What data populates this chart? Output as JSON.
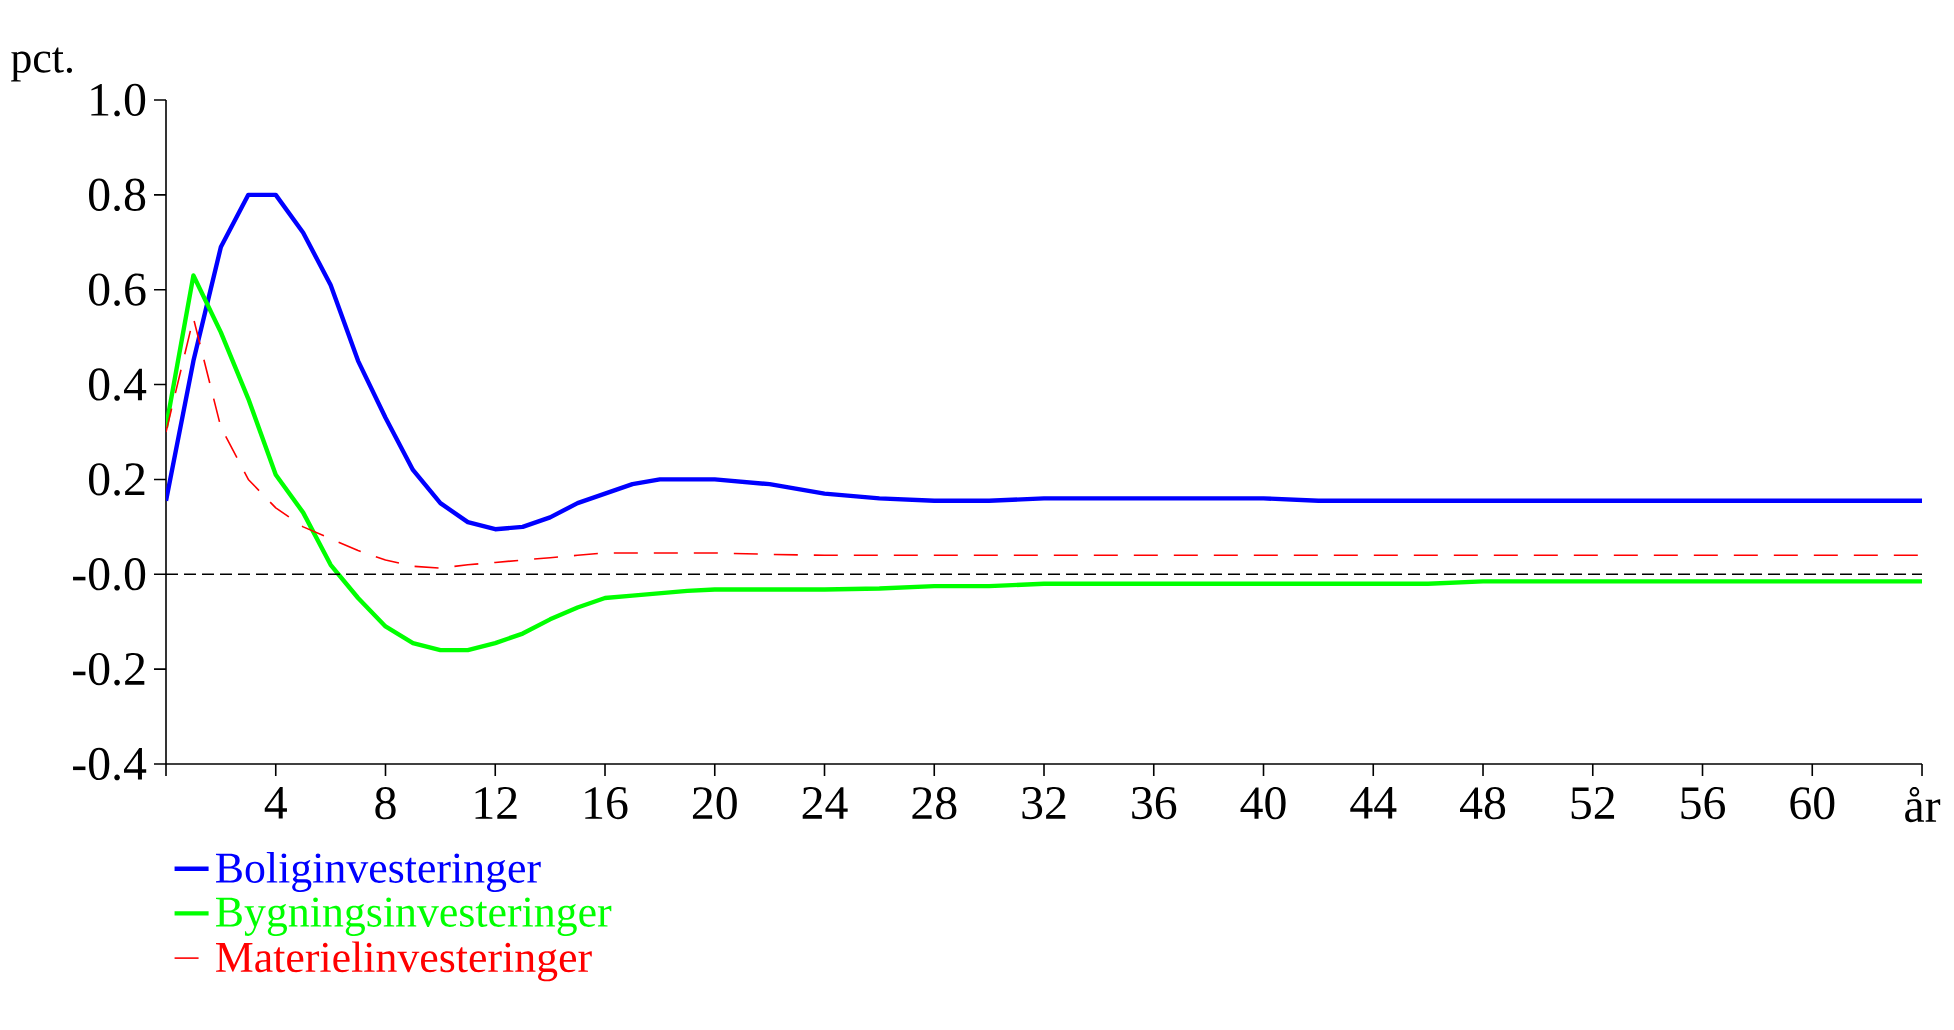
{
  "chart_data": {
    "type": "line",
    "ylabel": "pct.",
    "x": [
      0,
      1,
      2,
      3,
      4,
      5,
      6,
      7,
      8,
      9,
      10,
      11,
      12,
      13,
      14,
      15,
      16,
      17,
      18,
      19,
      20,
      22,
      24,
      26,
      28,
      30,
      32,
      34,
      36,
      38,
      40,
      42,
      44,
      46,
      48,
      50,
      52,
      54,
      56,
      58,
      60,
      62,
      64
    ],
    "series": [
      {
        "name": "Boliginvesteringer",
        "color": "#0000ff",
        "line_style": "solid",
        "values": [
          0.155,
          0.45,
          0.69,
          0.8,
          0.8,
          0.72,
          0.61,
          0.45,
          0.33,
          0.22,
          0.15,
          0.11,
          0.095,
          0.1,
          0.12,
          0.15,
          0.17,
          0.19,
          0.2,
          0.2,
          0.2,
          0.19,
          0.17,
          0.16,
          0.155,
          0.155,
          0.16,
          0.16,
          0.16,
          0.16,
          0.16,
          0.155,
          0.155,
          0.155,
          0.155,
          0.155,
          0.155,
          0.155,
          0.155,
          0.155,
          0.155,
          0.155,
          0.155
        ]
      },
      {
        "name": "Bygningsinvesteringer",
        "color": "#00ff00",
        "line_style": "solid",
        "values": [
          0.31,
          0.63,
          0.51,
          0.37,
          0.21,
          0.13,
          0.02,
          -0.05,
          -0.11,
          -0.145,
          -0.16,
          -0.16,
          -0.145,
          -0.125,
          -0.095,
          -0.07,
          -0.05,
          -0.045,
          -0.04,
          -0.035,
          -0.032,
          -0.032,
          -0.032,
          -0.03,
          -0.025,
          -0.025,
          -0.02,
          -0.02,
          -0.02,
          -0.02,
          -0.02,
          -0.02,
          -0.02,
          -0.02,
          -0.015,
          -0.015,
          -0.015,
          -0.015,
          -0.015,
          -0.015,
          -0.015,
          -0.015,
          -0.015
        ]
      },
      {
        "name": "Materielinvesteringer",
        "color": "#ff0000",
        "line_style": "dashed",
        "values": [
          0.3,
          0.54,
          0.31,
          0.2,
          0.14,
          0.1,
          0.075,
          0.05,
          0.03,
          0.017,
          0.013,
          0.02,
          0.025,
          0.03,
          0.035,
          0.04,
          0.045,
          0.045,
          0.045,
          0.045,
          0.045,
          0.042,
          0.04,
          0.04,
          0.04,
          0.04,
          0.04,
          0.04,
          0.04,
          0.04,
          0.04,
          0.04,
          0.04,
          0.04,
          0.04,
          0.04,
          0.04,
          0.04,
          0.04,
          0.04,
          0.04,
          0.04,
          0.04
        ]
      }
    ],
    "xlim": [
      0,
      64
    ],
    "xticks": [
      {
        "value": 0,
        "label": null
      },
      4,
      8,
      12,
      16,
      20,
      24,
      28,
      32,
      36,
      40,
      44,
      48,
      52,
      56,
      60,
      {
        "value": 64,
        "label": "år"
      }
    ],
    "ylim": [
      -0.4,
      1.0
    ],
    "yticks": [
      {
        "value": -0.4,
        "label": "-0.4"
      },
      {
        "value": -0.2,
        "label": "-0.2"
      },
      {
        "value": 0,
        "label": "-0.0"
      },
      {
        "value": 0.2,
        "label": "0.2"
      },
      {
        "value": 0.4,
        "label": "0.4"
      },
      {
        "value": 0.6,
        "label": "0.6"
      },
      {
        "value": 0.8,
        "label": "0.8"
      },
      {
        "value": 1.0,
        "label": "1.0"
      }
    ],
    "ref_lines": [
      {
        "axis": "y",
        "value": 0,
        "color": "#000000",
        "line_style": "dashed"
      }
    ],
    "grid": false,
    "legend": "bottom"
  }
}
